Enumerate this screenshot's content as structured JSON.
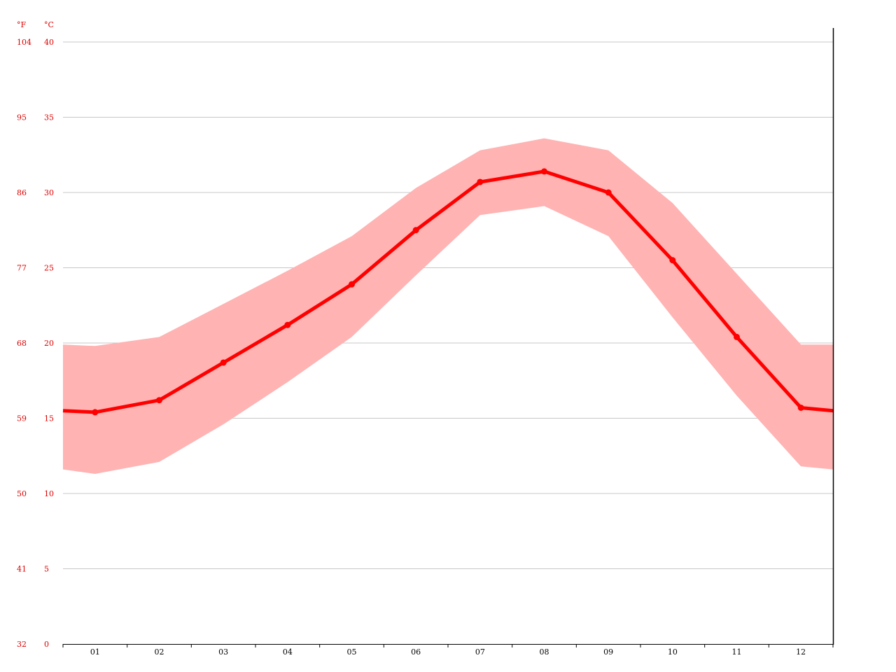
{
  "chart_data": {
    "type": "line",
    "categories": [
      "01",
      "02",
      "03",
      "04",
      "05",
      "06",
      "07",
      "08",
      "09",
      "10",
      "11",
      "12"
    ],
    "y_units": {
      "fahrenheit": "°F",
      "celsius": "°C"
    },
    "ylim": [
      0,
      40
    ],
    "y_ticks_celsius": [
      "0",
      "5",
      "10",
      "15",
      "20",
      "25",
      "30",
      "35",
      "40"
    ],
    "y_ticks_fahrenheit": [
      "32",
      "41",
      "50",
      "59",
      "68",
      "77",
      "86",
      "95",
      "104"
    ],
    "grid": true,
    "series": [
      {
        "role": "mean",
        "values": [
          15.4,
          16.2,
          18.7,
          21.2,
          23.9,
          27.5,
          30.7,
          31.4,
          30.0,
          25.5,
          20.4,
          15.7
        ]
      },
      {
        "role": "upper",
        "values": [
          19.8,
          20.4,
          22.6,
          24.8,
          27.1,
          30.3,
          32.8,
          33.6,
          32.8,
          29.3,
          24.6,
          19.9
        ]
      },
      {
        "role": "lower",
        "values": [
          11.3,
          12.1,
          14.6,
          17.4,
          20.4,
          24.5,
          28.5,
          29.1,
          27.1,
          21.7,
          16.5,
          11.8
        ]
      }
    ],
    "edge_values": {
      "mean": [
        15.5,
        15.5
      ],
      "upper": [
        19.9,
        19.9
      ],
      "lower": [
        11.6,
        11.6
      ]
    },
    "colors": {
      "line": "#ff0000",
      "band": "#ffb3b3",
      "grid": "#c8c8c8",
      "axis": "#000000",
      "y_labels": "#dd0000",
      "x_labels": "#000000"
    }
  }
}
